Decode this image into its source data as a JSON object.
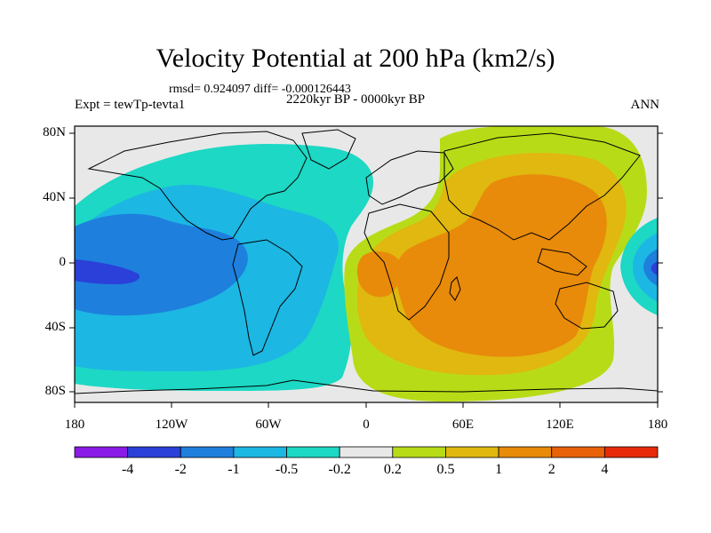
{
  "title": "Velocity Potential at 200 hPa (km2/s)",
  "stats": "rmsd= 0.924097 diff= -0.000126443",
  "experiment": "Expt = tewTp-tevta1",
  "period": "2220kyr BP - 0000kyr BP",
  "season": "ANN",
  "y_ticks": [
    "80N",
    "40N",
    "0",
    "40S",
    "80S"
  ],
  "x_ticks": [
    "180",
    "120W",
    "60W",
    "0",
    "60E",
    "120E",
    "180"
  ],
  "colorbar": {
    "labels": [
      "-4",
      "-2",
      "-1",
      "-0.5",
      "-0.2",
      "0.2",
      "0.5",
      "1",
      "2",
      "4"
    ],
    "colors": [
      "#8a1ae6",
      "#2a40d8",
      "#1e7fdd",
      "#1cb7e3",
      "#1cd8c4",
      "#e8e8e8",
      "#b7dc17",
      "#e0b80f",
      "#e88a0a",
      "#e8620a",
      "#e62a0a"
    ]
  },
  "colors": {
    "neutral": "#e8e8e8",
    "level_neg_0_2": "#1cd8c4",
    "level_neg_0_5": "#1cb7e3",
    "level_neg_1": "#1e7fdd",
    "level_neg_2": "#2a40d8",
    "level_pos_0_2": "#b7dc17",
    "level_pos_0_5": "#e0b80f",
    "level_pos_1": "#e88a0a"
  }
}
